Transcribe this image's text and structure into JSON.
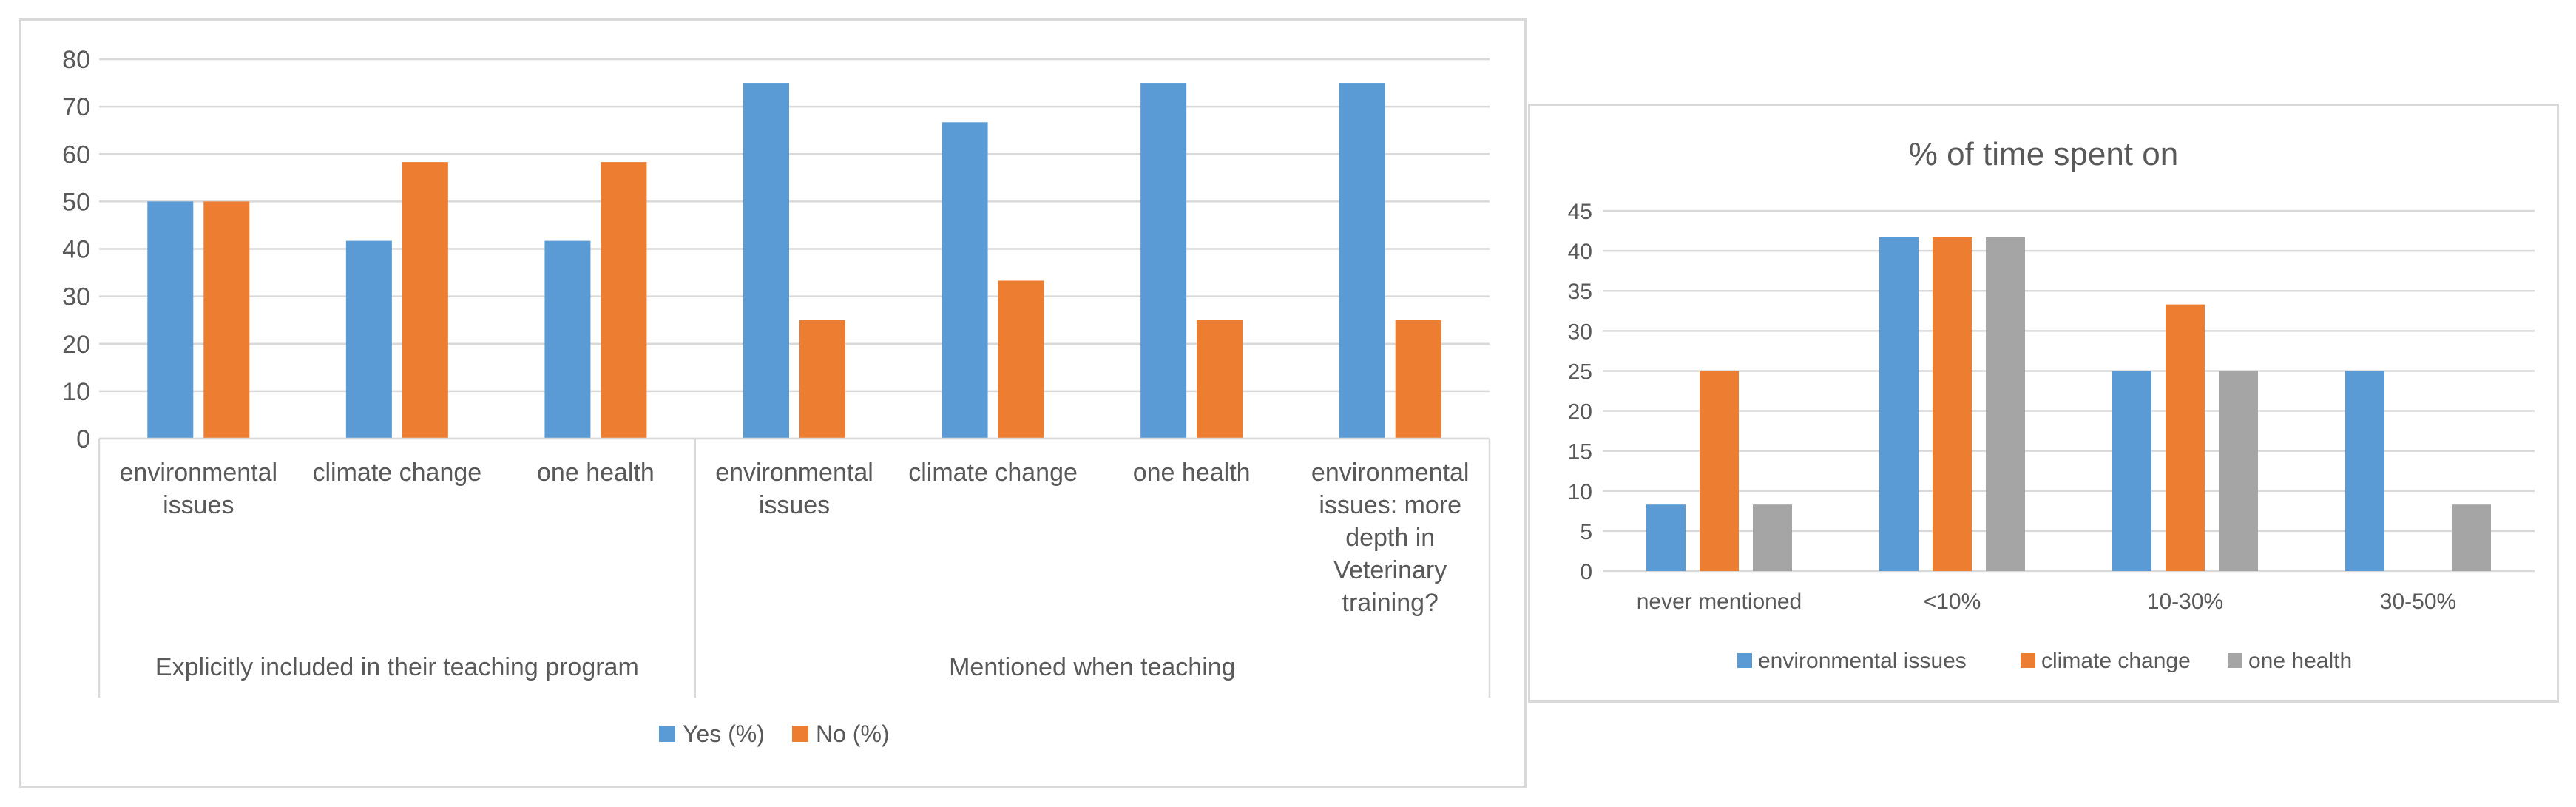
{
  "chart_data": [
    {
      "type": "bar",
      "title": "",
      "ylim": [
        0,
        80
      ],
      "yticks": [
        0,
        10,
        20,
        30,
        40,
        50,
        60,
        70,
        80
      ],
      "grid": true,
      "legend_position": "bottom",
      "groups": [
        {
          "label": "Explicitly included in their teaching program",
          "categories": [
            {
              "label_lines": [
                "environmental",
                "issues"
              ]
            },
            {
              "label_lines": [
                "climate change"
              ]
            },
            {
              "label_lines": [
                "one health"
              ]
            }
          ]
        },
        {
          "label": "Mentioned when teaching",
          "categories": [
            {
              "label_lines": [
                "environmental",
                "issues"
              ]
            },
            {
              "label_lines": [
                "climate change"
              ]
            },
            {
              "label_lines": [
                "one health"
              ]
            },
            {
              "label_lines": [
                "environmental",
                "issues: more",
                "depth in",
                "Veterinary",
                "training?"
              ]
            }
          ]
        }
      ],
      "series": [
        {
          "name": "Yes (%)",
          "color": "#5B9BD5",
          "values": [
            50,
            41.7,
            41.7,
            75,
            66.7,
            75,
            75
          ]
        },
        {
          "name": "No (%)",
          "color": "#ED7D31",
          "values": [
            50,
            58.3,
            58.3,
            25,
            33.3,
            25,
            25
          ]
        }
      ]
    },
    {
      "type": "bar",
      "title": "% of time spent on",
      "ylim": [
        0,
        45
      ],
      "yticks": [
        0,
        5,
        10,
        15,
        20,
        25,
        30,
        35,
        40,
        45
      ],
      "grid": true,
      "legend_position": "bottom",
      "categories": [
        "never mentioned",
        "<10%",
        "10-30%",
        "30-50%"
      ],
      "series": [
        {
          "name": "environmental issues",
          "color": "#5B9BD5",
          "values": [
            8.3,
            41.7,
            25,
            25
          ]
        },
        {
          "name": "climate change",
          "color": "#ED7D31",
          "values": [
            25,
            41.7,
            33.3,
            0
          ]
        },
        {
          "name": "one health",
          "color": "#A5A5A5",
          "values": [
            8.3,
            41.7,
            25,
            8.3
          ]
        }
      ]
    }
  ]
}
